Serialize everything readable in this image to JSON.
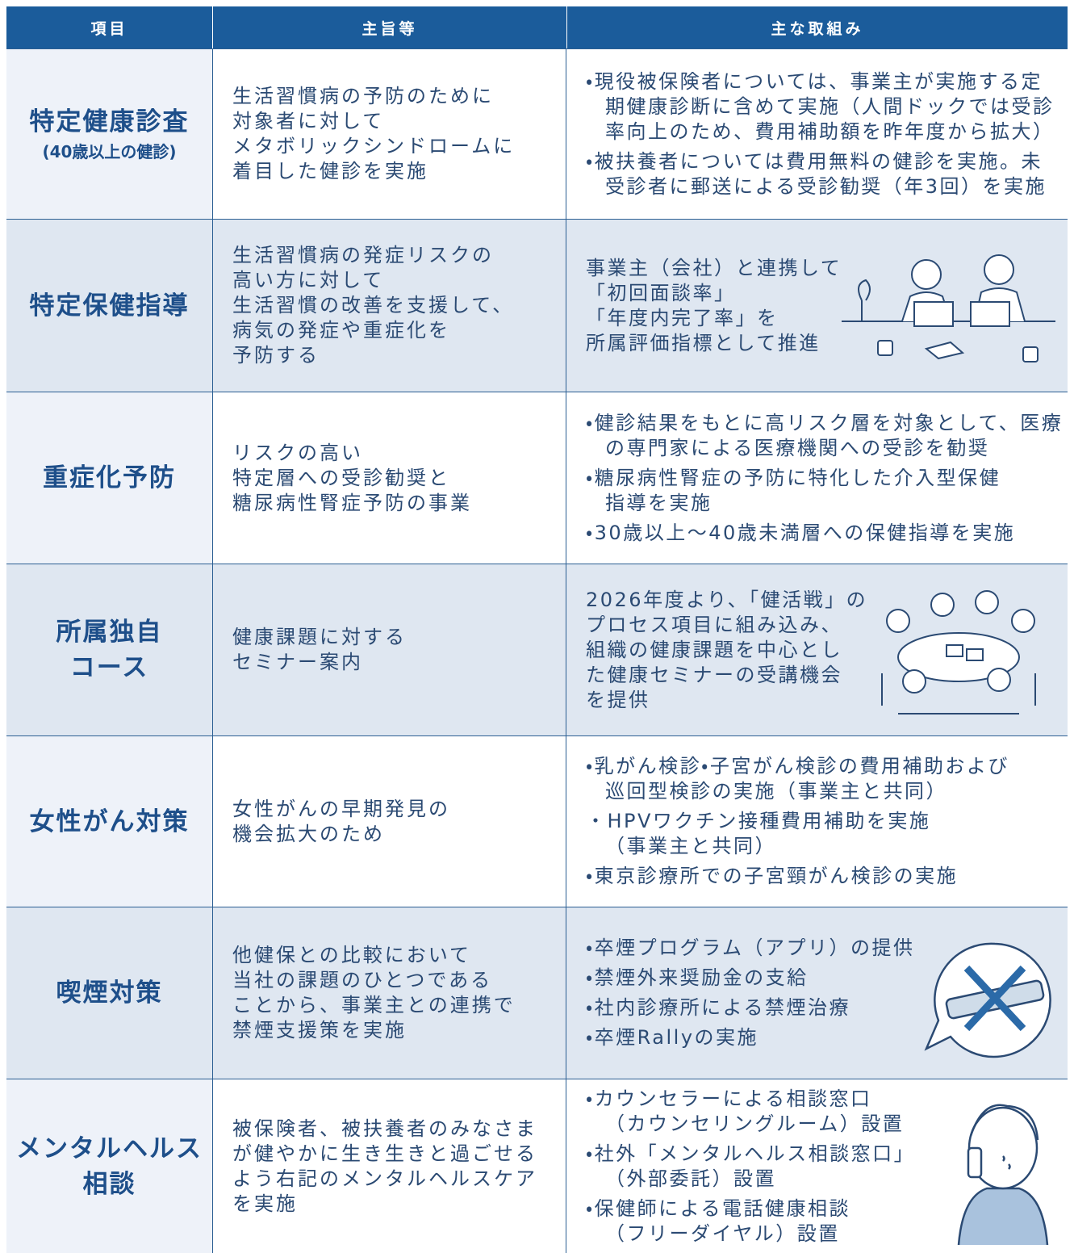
{
  "header": {
    "columns": [
      "項目",
      "主旨等",
      "主な取組み"
    ]
  },
  "rows": [
    {
      "item": [
        "特定健康診査"
      ],
      "item_note": "(40歳以上の健診)",
      "purpose": [
        "生活習慣病の予防のために",
        "対象者に対して",
        "メタボリックシンドロームに",
        "着目した健診を実施"
      ],
      "actions": {
        "bullets": [
          [
            "・現役被保険者については、事業主が実施する定",
            "期健康診断に含めて実施（人間ドックでは受診",
            "率向上のため、費用補助額を昨年度から拡大）"
          ],
          [
            "・被扶養者については費用無料の健診を実施。未",
            "受診者に郵送による受診勧奨（年3回）を実施"
          ]
        ]
      }
    },
    {
      "item": [
        "特定保健指導"
      ],
      "purpose": [
        "生活習慣病の発症リスクの",
        "高い方に対して",
        "生活習慣の改善を支援して、",
        "病気の発症や重症化を",
        "予防する"
      ],
      "actions": {
        "text": [
          "事業主（会社）と連携して",
          "「初回面談率」",
          "「年度内完了率」を",
          "所属評価指標として推進"
        ]
      }
    },
    {
      "item": [
        "重症化予防"
      ],
      "purpose": [
        "リスクの高い",
        "特定層への受診勧奨と",
        "糖尿病性腎症予防の事業"
      ],
      "actions": {
        "bullets": [
          [
            "・健診結果をもとに高リスク層を対象として、医療",
            "の専門家による医療機関への受診を勧奨"
          ],
          [
            "・糖尿病性腎症の予防に特化した介入型保健",
            "指導を実施"
          ],
          [
            "・30歳以上〜40歳未満層への保健指導を実施"
          ]
        ]
      }
    },
    {
      "item": [
        "所属独自",
        "コース"
      ],
      "purpose": [
        "健康課題に対する",
        "セミナー案内"
      ],
      "actions": {
        "text": [
          "2026年度より、「健活戦」の",
          "プロセス項目に組み込み、",
          "組織の健康課題を中心とし",
          "た健康セミナーの受講機会",
          "を提供"
        ]
      }
    },
    {
      "item": [
        "女性がん対策"
      ],
      "purpose": [
        "女性がんの早期発見の",
        "機会拡大のため"
      ],
      "actions": {
        "bullets": [
          [
            "・乳がん検診・子宮がん検診の費用補助および",
            "巡回型検診の実施（事業主と共同）"
          ],
          [
            "・HPVワクチン接種費用補助を実施",
            "（事業主と共同）"
          ],
          [
            "・東京診療所での子宮頸がん検診の実施"
          ]
        ]
      }
    },
    {
      "item": [
        "喫煙対策"
      ],
      "purpose": [
        "他健保との比較において",
        "当社の課題のひとつである",
        "ことから、事業主との連携で",
        "禁煙支援策を実施"
      ],
      "actions": {
        "bullets": [
          [
            "・卒煙プログラム（アプリ）の提供"
          ],
          [
            "・禁煙外来奨励金の支給"
          ],
          [
            "・社内診療所による禁煙治療"
          ],
          [
            "・卒煙Rallyの実施"
          ]
        ]
      }
    },
    {
      "item": [
        "メンタルヘルス",
        "相談"
      ],
      "purpose": [
        "被保険者、被扶養者のみなさま",
        "が健やかに生き生きと過ごせる",
        "よう右記のメンタルヘルスケア",
        "を実施"
      ],
      "actions": {
        "bullets": [
          [
            "・カウンセラーによる相談窓口",
            "（カウンセリングルーム）設置"
          ],
          [
            "・社外「メンタルヘルス相談窓口」",
            "（外部委託）設置"
          ],
          [
            "・保健師による電話健康相談",
            "（フリーダイヤル）設置"
          ]
        ]
      }
    }
  ]
}
